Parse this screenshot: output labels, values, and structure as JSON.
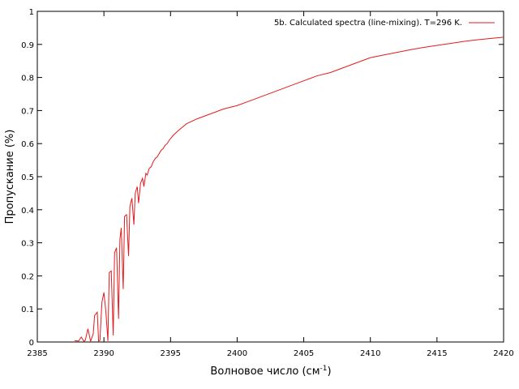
{
  "chart_data": {
    "type": "line",
    "xlabel": "Волновое число (см",
    "xlabel_sup": "-1",
    "xlabel_tail": ")",
    "ylabel": "Пропускание (%)",
    "xlim": [
      2385,
      2420
    ],
    "ylim": [
      0,
      1
    ],
    "x_ticks": [
      "2385",
      "2390",
      "2395",
      "2400",
      "2405",
      "2410",
      "2415",
      "2420"
    ],
    "y_ticks": [
      "0",
      "0.1",
      "0.2",
      "0.3",
      "0.4",
      "0.5",
      "0.6",
      "0.7",
      "0.8",
      "0.9",
      "1"
    ],
    "grid": false,
    "legend_position": "top-right",
    "series": [
      {
        "name": "5b. Calculated spectra (line-mixing). T=296 K.",
        "color": "#e41a1c",
        "x": [
          2387.8,
          2388.1,
          2388.3,
          2388.5,
          2388.6,
          2388.8,
          2389.0,
          2389.2,
          2389.3,
          2389.5,
          2389.6,
          2389.7,
          2389.85,
          2390.0,
          2390.15,
          2390.3,
          2390.4,
          2390.55,
          2390.7,
          2390.8,
          2390.95,
          2391.1,
          2391.2,
          2391.3,
          2391.45,
          2391.55,
          2391.7,
          2391.85,
          2391.95,
          2392.1,
          2392.25,
          2392.35,
          2392.5,
          2392.6,
          2392.75,
          2392.9,
          2393.0,
          2393.15,
          2393.25,
          2393.4,
          2393.55,
          2393.7,
          2393.85,
          2394.0,
          2394.15,
          2394.3,
          2394.45,
          2394.6,
          2394.75,
          2394.9,
          2395.2,
          2395.6,
          2396.2,
          2397.0,
          2398.0,
          2399.0,
          2400.0,
          2401.0,
          2402.0,
          2403.0,
          2404.0,
          2405.0,
          2406.0,
          2407.0,
          2408.0,
          2409.0,
          2410.0,
          2411.0,
          2412.0,
          2413.0,
          2414.0,
          2415.0,
          2416.0,
          2417.0,
          2418.0,
          2419.0,
          2420.0
        ],
        "y": [
          0.004,
          0.003,
          0.015,
          0.002,
          0.005,
          0.04,
          0.002,
          0.025,
          0.08,
          0.09,
          0.003,
          0.005,
          0.12,
          0.15,
          0.09,
          0.003,
          0.21,
          0.215,
          0.02,
          0.27,
          0.285,
          0.07,
          0.31,
          0.345,
          0.16,
          0.38,
          0.385,
          0.26,
          0.41,
          0.435,
          0.355,
          0.45,
          0.47,
          0.42,
          0.48,
          0.495,
          0.47,
          0.51,
          0.505,
          0.525,
          0.53,
          0.545,
          0.555,
          0.56,
          0.57,
          0.58,
          0.585,
          0.595,
          0.6,
          0.61,
          0.625,
          0.64,
          0.66,
          0.675,
          0.69,
          0.705,
          0.715,
          0.73,
          0.745,
          0.76,
          0.775,
          0.79,
          0.805,
          0.815,
          0.83,
          0.845,
          0.86,
          0.868,
          0.876,
          0.884,
          0.891,
          0.897,
          0.903,
          0.909,
          0.914,
          0.918,
          0.922
        ]
      }
    ]
  }
}
